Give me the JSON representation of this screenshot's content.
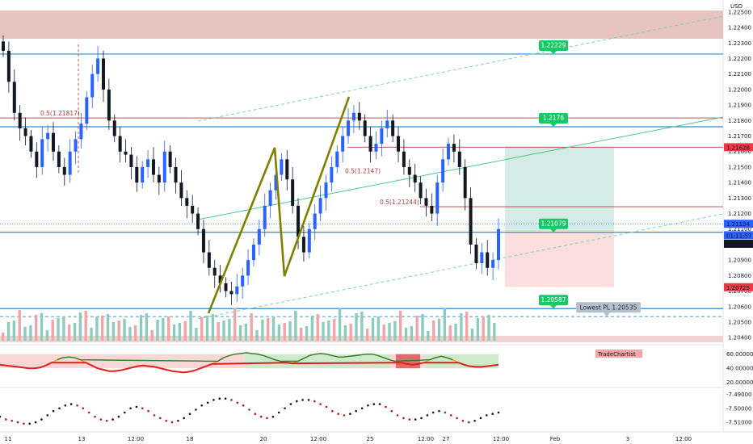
{
  "chart_data": [
    {
      "type": "candlestick",
      "currency": "USD",
      "y_ticks": [
        "1.22500",
        "1.22400",
        "1.22300",
        "1.22200",
        "1.22100",
        "1.22000",
        "1.21900",
        "1.21800",
        "1.21700",
        "1.21600",
        "1.21500",
        "1.21400",
        "1.21300",
        "1.21200",
        "1.21100",
        "1.21000",
        "1.20900",
        "1.20800",
        "1.20700",
        "1.20600",
        "1.20500",
        "1.20400"
      ],
      "x_ticks": [
        "11",
        "13",
        "12:00",
        "18",
        "20",
        "12:00",
        "25",
        "12:00",
        "27",
        "12:00",
        "Feb",
        "3",
        "12:00"
      ],
      "ylim": [
        1.2038,
        1.2251
      ],
      "price_tags": [
        {
          "text": "1.21628",
          "color": "#f23645"
        },
        {
          "text": "1.21134",
          "color": "#2962ff"
        },
        {
          "text": "01:11:57",
          "color": "#2962ff"
        },
        {
          "text": "1.21076",
          "color": "#131722"
        },
        {
          "text": "1.20725",
          "color": "#f23645"
        }
      ],
      "level_labels": [
        {
          "text": "1.22229",
          "y": 1.22229
        },
        {
          "text": "1.2176",
          "y": 1.2176
        },
        {
          "text": "1.21079",
          "y": 1.21079
        },
        {
          "text": "1.20587",
          "y": 1.20587
        }
      ],
      "fib_labels": [
        "0.5(1.21817)",
        "0.5(1.2147)",
        "0.5(1.21244)"
      ],
      "note": "Lowest PL 1.20535",
      "horizontal_levels": [
        1.22229,
        1.2176,
        1.21628,
        1.21244,
        1.21079,
        1.20587,
        1.20535
      ],
      "closes": [
        1.2225,
        1.2205,
        1.2185,
        1.2175,
        1.217,
        1.216,
        1.215,
        1.2168,
        1.2172,
        1.216,
        1.215,
        1.2145,
        1.216,
        1.2168,
        1.2178,
        1.2195,
        1.221,
        1.222,
        1.22,
        1.218,
        1.217,
        1.216,
        1.2158,
        1.215,
        1.214,
        1.215,
        1.2155,
        1.2145,
        1.214,
        1.216,
        1.215,
        1.214,
        1.213,
        1.2125,
        1.212,
        1.211,
        1.2095,
        1.2085,
        1.208,
        1.2075,
        1.207,
        1.2068,
        1.2073,
        1.208,
        1.209,
        1.21,
        1.211,
        1.2125,
        1.2135,
        1.2145,
        1.2155,
        1.2142,
        1.2125,
        1.2105,
        1.2095,
        1.211,
        1.212,
        1.213,
        1.214,
        1.215,
        1.216,
        1.217,
        1.218,
        1.2185,
        1.218,
        1.217,
        1.216,
        1.2165,
        1.2175,
        1.218,
        1.217,
        1.216,
        1.215,
        1.2145,
        1.214,
        1.213,
        1.2125,
        1.212,
        1.214,
        1.2155,
        1.2165,
        1.216,
        1.215,
        1.213,
        1.21,
        1.2088,
        1.2095,
        1.2085,
        1.209,
        1.211
      ],
      "volume_count": 90,
      "price_labels_text_color": "#131722"
    },
    {
      "type": "line",
      "y_ticks": [
        "60.00000",
        "40.00000",
        "20.00000"
      ],
      "badge": "TradeChartist",
      "values": [
        45,
        44,
        43,
        42,
        41,
        40,
        40,
        41,
        44,
        48,
        52,
        55,
        56,
        55,
        52,
        48,
        44,
        40,
        38,
        36,
        36,
        37,
        39,
        41,
        43,
        44,
        43,
        42,
        40,
        38,
        36,
        35,
        34,
        35,
        37,
        40,
        43,
        46,
        50,
        55,
        58,
        60,
        61,
        62,
        61,
        60,
        58,
        55,
        52,
        50,
        48,
        47,
        50,
        54,
        58,
        60,
        61,
        60,
        58,
        56,
        56,
        57,
        58,
        59,
        60,
        60,
        58,
        55,
        52,
        50,
        48,
        46,
        45,
        46,
        48,
        52,
        55,
        57,
        55,
        52,
        48,
        45,
        43,
        42,
        42,
        43,
        44,
        45
      ]
    },
    {
      "type": "line",
      "y_ticks": [
        "-7.49000",
        "-7.50000",
        "-7.51000"
      ],
      "values": [
        -7.506,
        -7.508,
        -7.509,
        -7.51,
        -7.511,
        -7.511,
        -7.51,
        -7.508,
        -7.505,
        -7.502,
        -7.5,
        -7.498,
        -7.497,
        -7.498,
        -7.5,
        -7.503,
        -7.506,
        -7.508,
        -7.509,
        -7.508,
        -7.506,
        -7.503,
        -7.5,
        -7.499,
        -7.5,
        -7.502,
        -7.505,
        -7.507,
        -7.509,
        -7.51,
        -7.509,
        -7.507,
        -7.504,
        -7.501,
        -7.498,
        -7.496,
        -7.494,
        -7.493,
        -7.493,
        -7.494,
        -7.496,
        -7.498,
        -7.501,
        -7.504,
        -7.506,
        -7.507,
        -7.506,
        -7.503,
        -7.5,
        -7.497,
        -7.495,
        -7.494,
        -7.494,
        -7.495,
        -7.497,
        -7.499,
        -7.502,
        -7.504,
        -7.505,
        -7.504,
        -7.502,
        -7.5,
        -7.498,
        -7.497,
        -7.497,
        -7.499,
        -7.502,
        -7.505,
        -7.507,
        -7.508,
        -7.508,
        -7.507,
        -7.505,
        -7.503,
        -7.502,
        -7.503,
        -7.505,
        -7.507,
        -7.509,
        -7.51,
        -7.509,
        -7.507,
        -7.505,
        -7.504,
        -7.503
      ]
    }
  ]
}
